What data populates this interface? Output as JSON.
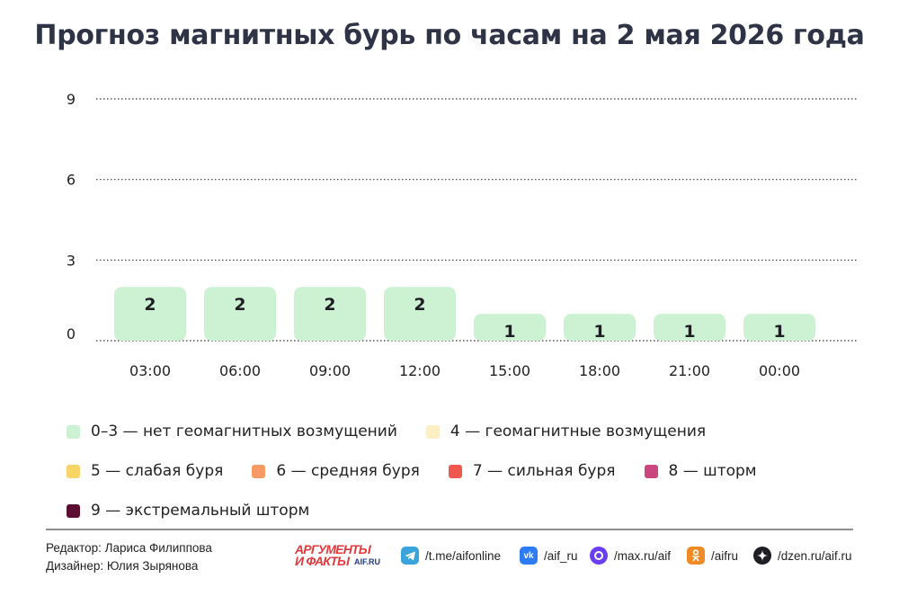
{
  "title": "Прогноз магнитных бурь по часам на 2 мая 2026 года",
  "chart_data": {
    "type": "bar",
    "categories": [
      "03:00",
      "06:00",
      "09:00",
      "12:00",
      "15:00",
      "18:00",
      "21:00",
      "00:00"
    ],
    "values": [
      2,
      2,
      2,
      2,
      1,
      1,
      1,
      1
    ],
    "yticks": [
      0,
      3,
      6,
      9
    ],
    "ylim": [
      0,
      9
    ],
    "grid": true,
    "bar_color": "#ccf2d3",
    "title": "Прогноз магнитных бурь по часам на 2 мая 2026 года"
  },
  "legend": [
    [
      {
        "label": "0–3 — нет геомагнитных возмущений",
        "color": "#ccf2d3"
      },
      {
        "label": "4 — геомагнитные возмущения",
        "color": "#fcefc4"
      }
    ],
    [
      {
        "label": "5 — слабая буря",
        "color": "#f8d366"
      },
      {
        "label": "6 — средняя буря",
        "color": "#f79a66"
      },
      {
        "label": "7 — сильная буря",
        "color": "#f0574f"
      },
      {
        "label": "8 — шторм",
        "color": "#c9467f"
      }
    ],
    [
      {
        "label": "9 — экстремальный шторм",
        "color": "#5a0e31"
      }
    ]
  ],
  "footer": {
    "editor": "Редактор: Лариса Филиппова",
    "designer": "Дизайнер: Юлия Зырянова",
    "logo_line1": "АРГУМЕНТЫ",
    "logo_line2": "И ФАКТЫ",
    "logo_line3": "AIF.RU",
    "social": [
      {
        "icon": "telegram-icon",
        "text": "/t.me/aifonline",
        "color": "#3aa3dc"
      },
      {
        "icon": "vk-icon",
        "text": "/aif_ru",
        "color": "#2d7cf6"
      },
      {
        "icon": "max-icon",
        "text": "/max.ru/aif",
        "color": "#6a3df0"
      },
      {
        "icon": "odnoklassniki-icon",
        "text": "/aifru",
        "color": "#f08a24"
      },
      {
        "icon": "dzen-icon",
        "text": "/dzen.ru/aif.ru",
        "color": "#1e1e24"
      }
    ]
  }
}
